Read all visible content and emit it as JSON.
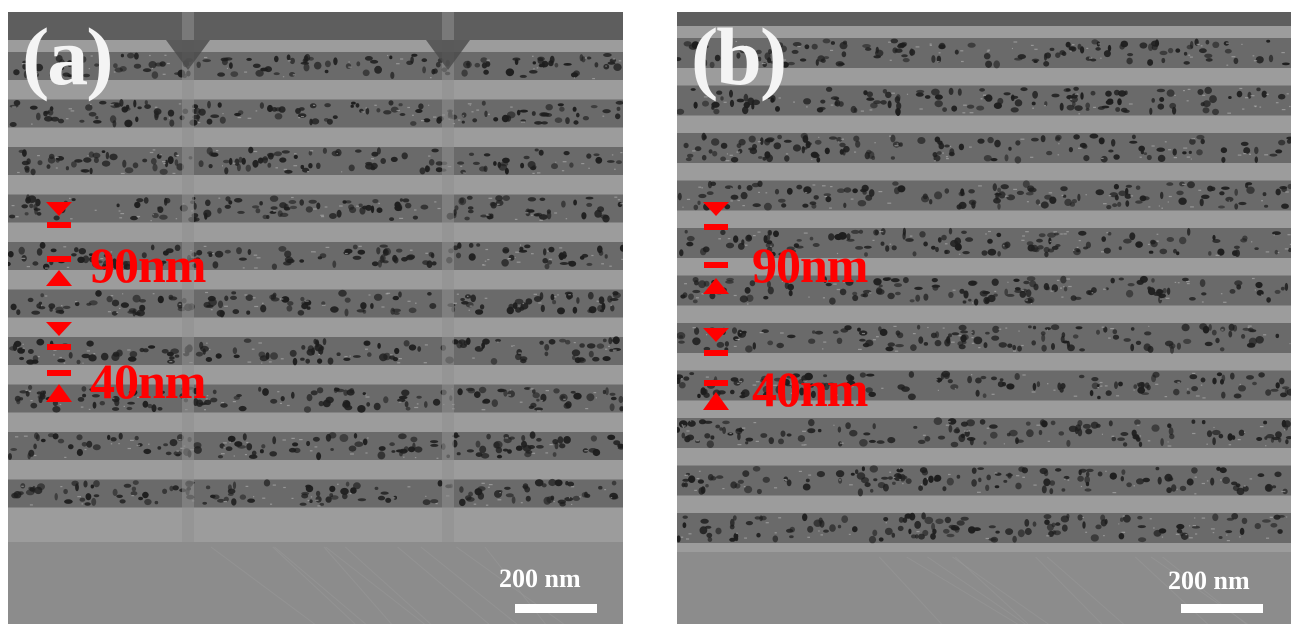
{
  "panels": [
    {
      "id": "a",
      "label": "(a)",
      "measurement_90": "90nm",
      "measurement_40": "40nm",
      "scale_label": "200 nm"
    },
    {
      "id": "b",
      "label": "(b)",
      "measurement_90": "90nm",
      "measurement_40": "40nm",
      "scale_label": "200 nm"
    }
  ],
  "colors": {
    "annotation": "#ff0000",
    "label": "#f4f4f4",
    "scale": "#ffffff",
    "dense_layer": "#9c9c9c",
    "porous_layer": "#6a6a6a",
    "pore": "#1e1e1e",
    "substrate": "#8c8c8c"
  },
  "icons": [
    "double-arrow-icon"
  ]
}
